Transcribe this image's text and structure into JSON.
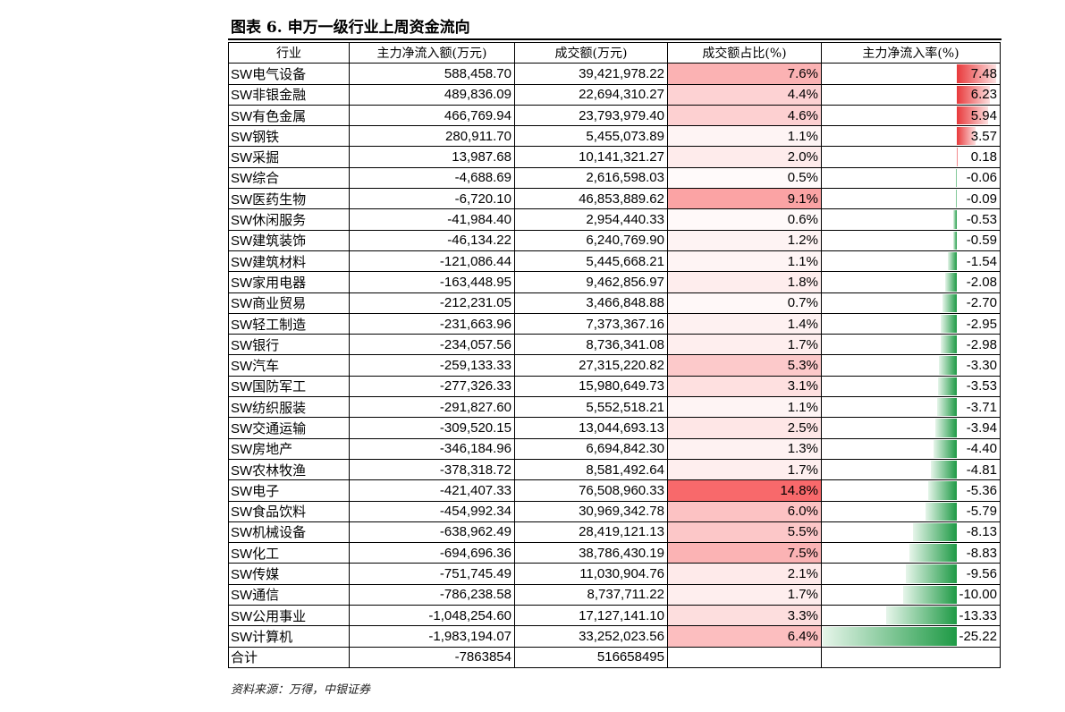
{
  "title": "图表 6. 申万一级行业上周资金流向",
  "table": {
    "header": [
      "行业",
      "主力净流入额(万元)",
      "成交额(万元)",
      "成交额占比(%)",
      "主力净流入率(%)"
    ],
    "rows": [
      [
        "SW电气设备",
        "588,458.70",
        "39,421,978.22",
        "7.6%",
        "7.48"
      ],
      [
        "SW非银金融",
        "489,836.09",
        "22,694,310.27",
        "4.4%",
        "6.23"
      ],
      [
        "SW有色金属",
        "466,769.94",
        "23,793,979.40",
        "4.6%",
        "5.94"
      ],
      [
        "SW钢铁",
        "280,911.70",
        "5,455,073.89",
        "1.1%",
        "3.57"
      ],
      [
        "SW采掘",
        "13,987.68",
        "10,141,321.27",
        "2.0%",
        "0.18"
      ],
      [
        "SW综合",
        "-4,688.69",
        "2,616,598.03",
        "0.5%",
        "-0.06"
      ],
      [
        "SW医药生物",
        "-6,720.10",
        "46,853,889.62",
        "9.1%",
        "-0.09"
      ],
      [
        "SW休闲服务",
        "-41,984.40",
        "2,954,440.33",
        "0.6%",
        "-0.53"
      ],
      [
        "SW建筑装饰",
        "-46,134.22",
        "6,240,769.90",
        "1.2%",
        "-0.59"
      ],
      [
        "SW建筑材料",
        "-121,086.44",
        "5,445,668.21",
        "1.1%",
        "-1.54"
      ],
      [
        "SW家用电器",
        "-163,448.95",
        "9,462,856.97",
        "1.8%",
        "-2.08"
      ],
      [
        "SW商业贸易",
        "-212,231.05",
        "3,466,848.88",
        "0.7%",
        "-2.70"
      ],
      [
        "SW轻工制造",
        "-231,663.96",
        "7,373,367.16",
        "1.4%",
        "-2.95"
      ],
      [
        "SW银行",
        "-234,057.56",
        "8,736,341.08",
        "1.7%",
        "-2.98"
      ],
      [
        "SW汽车",
        "-259,133.33",
        "27,315,220.82",
        "5.3%",
        "-3.30"
      ],
      [
        "SW国防军工",
        "-277,326.33",
        "15,980,649.73",
        "3.1%",
        "-3.53"
      ],
      [
        "SW纺织服装",
        "-291,827.60",
        "5,552,518.21",
        "1.1%",
        "-3.71"
      ],
      [
        "SW交通运输",
        "-309,520.15",
        "13,044,693.13",
        "2.5%",
        "-3.94"
      ],
      [
        "SW房地产",
        "-346,184.96",
        "6,694,842.30",
        "1.3%",
        "-4.40"
      ],
      [
        "SW农林牧渔",
        "-378,318.72",
        "8,581,492.64",
        "1.7%",
        "-4.81"
      ],
      [
        "SW电子",
        "-421,407.33",
        "76,508,960.33",
        "14.8%",
        "-5.36"
      ],
      [
        "SW食品饮料",
        "-454,992.34",
        "30,969,342.78",
        "6.0%",
        "-5.79"
      ],
      [
        "SW机械设备",
        "-638,962.49",
        "28,419,121.13",
        "5.5%",
        "-8.13"
      ],
      [
        "SW化工",
        "-694,696.36",
        "38,786,430.19",
        "7.5%",
        "-8.83"
      ],
      [
        "SW传媒",
        "-751,745.49",
        "11,030,904.76",
        "2.1%",
        "-9.56"
      ],
      [
        "SW通信",
        "-786,238.58",
        "8,737,711.22",
        "1.7%",
        "-10.00"
      ],
      [
        "SW公用事业",
        "-1,048,254.60",
        "17,127,141.10",
        "3.3%",
        "-13.33"
      ],
      [
        "SW计算机",
        "-1,983,194.07",
        "33,252,023.56",
        "6.4%",
        "-25.22"
      ]
    ],
    "total": [
      "合计",
      "-7863854",
      "516658495"
    ]
  },
  "source": "资料来源：万得，中银证券"
}
